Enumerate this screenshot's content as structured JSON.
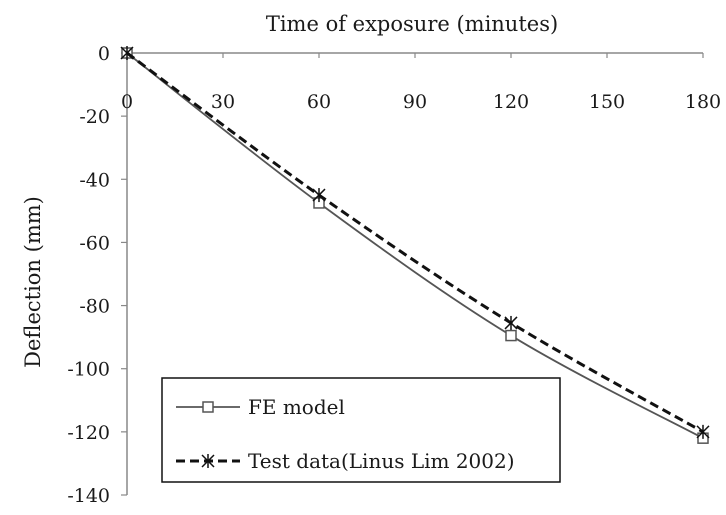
{
  "chart_data": {
    "type": "line",
    "xlabel": "Time of exposure (minutes)",
    "ylabel": "Deflection (mm)",
    "x_axis_position": "top",
    "xlim": [
      0,
      180
    ],
    "ylim": [
      -140,
      0
    ],
    "x_ticks": [
      0,
      30,
      60,
      90,
      120,
      150,
      180
    ],
    "y_ticks": [
      0,
      -20,
      -40,
      -60,
      -80,
      -100,
      -120,
      -140
    ],
    "grid": false,
    "legend_position": "bottom-left",
    "series": [
      {
        "name": "FE model",
        "style": "solid",
        "marker": "square",
        "color": "#555555",
        "x": [
          0,
          60,
          120,
          180
        ],
        "y": [
          0,
          -47.5,
          -89.5,
          -122
        ]
      },
      {
        "name": "Test data(Linus Lim 2002)",
        "style": "dashed",
        "marker": "asterisk",
        "color": "#111111",
        "x": [
          0,
          60,
          120,
          180
        ],
        "y": [
          0,
          -45,
          -85.5,
          -120
        ]
      }
    ]
  }
}
